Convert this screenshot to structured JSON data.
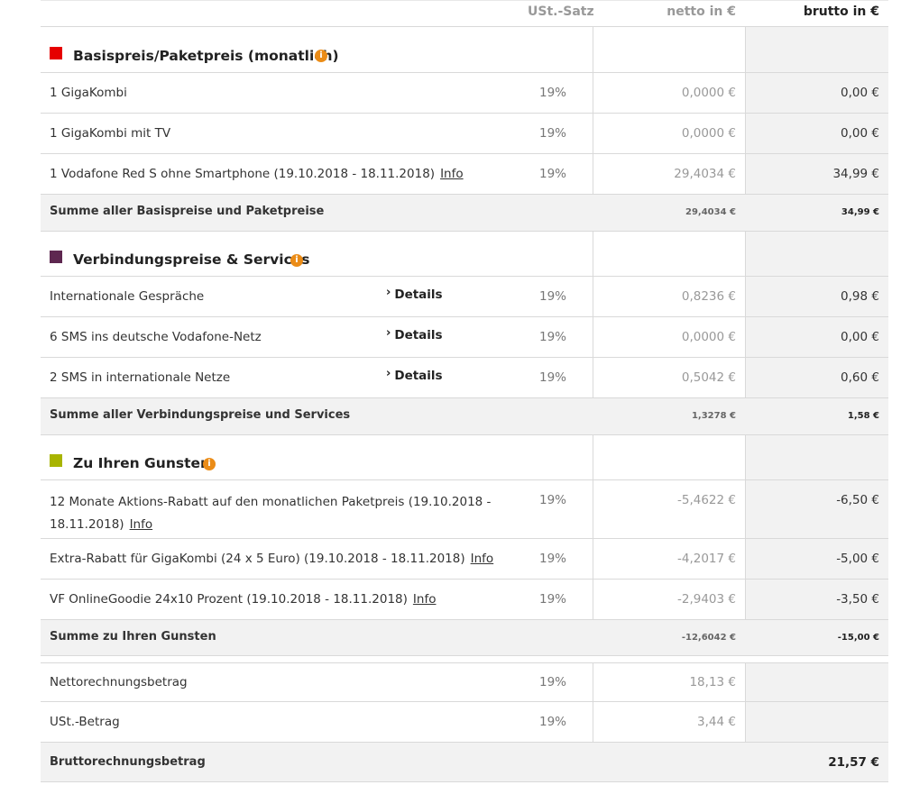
{
  "header": {
    "vat": "USt.-Satz",
    "net": "netto in €",
    "gross": "brutto in €"
  },
  "sections": [
    {
      "title": "Basispreis/Paketpreis (monatlich)",
      "color": "#e60000",
      "rows": [
        {
          "desc": "1 GigaKombi",
          "vat": "19%",
          "net": "0,0000 €",
          "gross": "0,00 €"
        },
        {
          "desc": "1 GigaKombi mit TV",
          "vat": "19%",
          "net": "0,0000 €",
          "gross": "0,00 €"
        },
        {
          "desc": "1 Vodafone Red S ohne Smartphone (19.10.2018 - 18.11.2018)",
          "info": "Info",
          "vat": "19%",
          "net": "29,4034 €",
          "gross": "34,99 €"
        }
      ],
      "sum": {
        "desc": "Summe aller Basispreise und Paketpreise",
        "net": "29,4034 €",
        "gross": "34,99 €"
      }
    },
    {
      "title": "Verbindungspreise & Services",
      "color": "#5e2750",
      "rows": [
        {
          "desc": "Internationale Gespräche",
          "details": "Details",
          "vat": "19%",
          "net": "0,8236 €",
          "gross": "0,98 €"
        },
        {
          "desc": "6 SMS ins deutsche Vodafone-Netz",
          "details": "Details",
          "vat": "19%",
          "net": "0,0000 €",
          "gross": "0,00 €"
        },
        {
          "desc": "2 SMS in internationale Netze",
          "details": "Details",
          "vat": "19%",
          "net": "0,5042 €",
          "gross": "0,60 €"
        }
      ],
      "sum": {
        "desc": "Summe aller Verbindungspreise und Services",
        "net": "1,3278 €",
        "gross": "1,58 €"
      }
    },
    {
      "title": "Zu Ihren Gunsten",
      "color": "#a8b400",
      "rows": [
        {
          "desc": "12 Monate Aktions-Rabatt auf den monatlichen Paketpreis (19.10.2018 -",
          "desc2": "18.11.2018)",
          "info": "Info",
          "vat": "19%",
          "net": "-5,4622 €",
          "gross": "-6,50 €"
        },
        {
          "desc": "Extra-Rabatt für GigaKombi (24 x 5 Euro) (19.10.2018 - 18.11.2018)",
          "info": "Info",
          "vat": "19%",
          "net": "-4,2017 €",
          "gross": "-5,00 €"
        },
        {
          "desc": "VF OnlineGoodie 24x10 Prozent (19.10.2018 - 18.11.2018)",
          "info": "Info",
          "vat": "19%",
          "net": "-2,9403 €",
          "gross": "-3,50 €"
        }
      ],
      "sum": {
        "desc": "Summe zu Ihren Gunsten",
        "net": "-12,6042 €",
        "gross": "-15,00 €"
      }
    }
  ],
  "totals": {
    "net_label": "Nettorechnungsbetrag",
    "net_vat": "19%",
    "net_value": "18,13 €",
    "tax_label": "USt.-Betrag",
    "tax_vat": "19%",
    "tax_value": "3,44 €",
    "gross_label": "Bruttorechnungsbetrag",
    "gross_value": "21,57 €"
  },
  "info_icon": "i"
}
